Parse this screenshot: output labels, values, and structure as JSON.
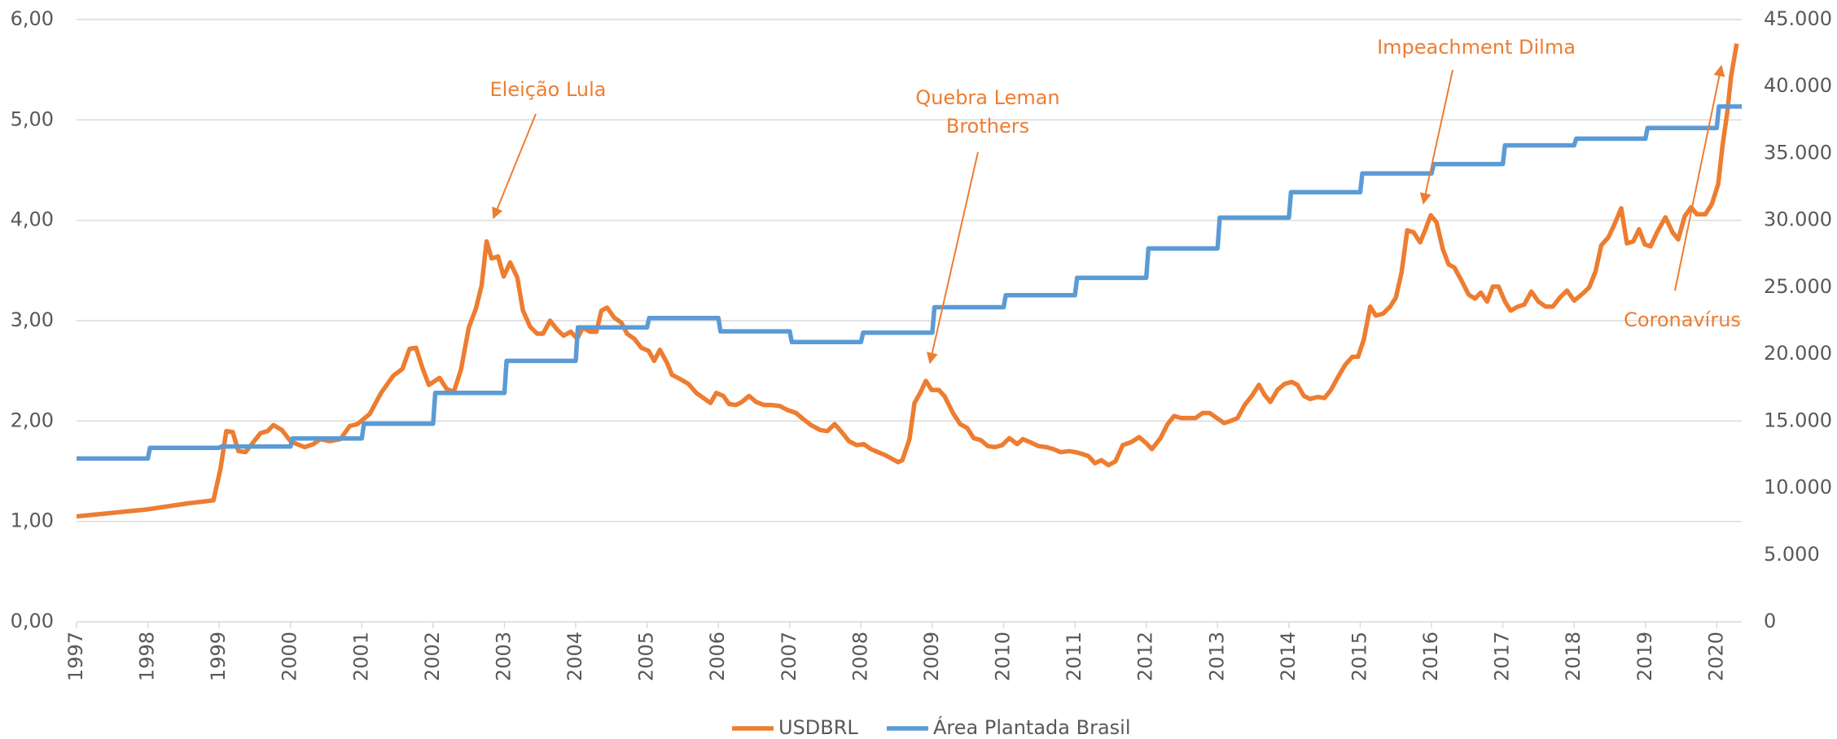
{
  "chart_data": {
    "type": "line",
    "series": [
      {
        "name": "USDBRL",
        "color": "#ED7D31",
        "axis": "y",
        "x": [
          1997.0,
          1997.99,
          1998.56,
          1998.92,
          1999.02,
          1999.1,
          1999.19,
          1999.27,
          1999.37,
          1999.48,
          1999.58,
          1999.68,
          1999.76,
          1999.88,
          2000.0,
          2000.09,
          2000.2,
          2000.32,
          2000.42,
          2000.55,
          2000.7,
          2000.83,
          2000.94,
          2001.11,
          2001.27,
          2001.44,
          2001.57,
          2001.67,
          2001.76,
          2001.85,
          2001.94,
          2002.09,
          2002.19,
          2002.29,
          2002.39,
          2002.5,
          2002.6,
          2002.68,
          2002.75,
          2002.82,
          2002.91,
          2002.99,
          2003.08,
          2003.18,
          2003.26,
          2003.36,
          2003.46,
          2003.54,
          2003.64,
          2003.74,
          2003.83,
          2003.93,
          2004.02,
          2004.1,
          2004.2,
          2004.29,
          2004.36,
          2004.44,
          2004.54,
          2004.64,
          2004.72,
          2004.82,
          2004.92,
          2005.02,
          2005.1,
          2005.18,
          2005.28,
          2005.35,
          2005.46,
          2005.58,
          2005.69,
          2005.79,
          2005.89,
          2005.97,
          2006.07,
          2006.15,
          2006.25,
          2006.33,
          2006.43,
          2006.53,
          2006.64,
          2006.74,
          2006.86,
          2006.97,
          2007.09,
          2007.19,
          2007.3,
          2007.43,
          2007.53,
          2007.63,
          2007.73,
          2007.83,
          2007.94,
          2008.04,
          2008.14,
          2008.24,
          2008.34,
          2008.42,
          2008.52,
          2008.58,
          2008.68,
          2008.75,
          2008.83,
          2008.91,
          2008.99,
          2009.09,
          2009.17,
          2009.29,
          2009.39,
          2009.49,
          2009.58,
          2009.68,
          2009.78,
          2009.88,
          2009.98,
          2010.08,
          2010.19,
          2010.27,
          2010.37,
          2010.49,
          2010.6,
          2010.7,
          2010.8,
          2010.92,
          2011.01,
          2011.11,
          2011.19,
          2011.28,
          2011.37,
          2011.47,
          2011.57,
          2011.67,
          2011.79,
          2011.9,
          2012.0,
          2012.08,
          2012.2,
          2012.3,
          2012.39,
          2012.49,
          2012.59,
          2012.69,
          2012.79,
          2012.89,
          2012.99,
          2013.09,
          2013.18,
          2013.28,
          2013.38,
          2013.48,
          2013.58,
          2013.66,
          2013.74,
          2013.84,
          2013.94,
          2014.04,
          2014.12,
          2014.21,
          2014.3,
          2014.4,
          2014.5,
          2014.59,
          2014.69,
          2014.79,
          2014.89,
          2014.97,
          2015.05,
          2015.14,
          2015.22,
          2015.32,
          2015.42,
          2015.5,
          2015.58,
          2015.66,
          2015.75,
          2015.84,
          2015.91,
          2015.99,
          2016.07,
          2016.16,
          2016.24,
          2016.32,
          2016.42,
          2016.52,
          2016.61,
          2016.69,
          2016.78,
          2016.86,
          2016.94,
          2017.03,
          2017.11,
          2017.21,
          2017.3,
          2017.4,
          2017.5,
          2017.6,
          2017.7,
          2017.8,
          2017.9,
          2018.0,
          2018.12,
          2018.21,
          2018.3,
          2018.38,
          2018.48,
          2018.56,
          2018.66,
          2018.74,
          2018.83,
          2018.91,
          2018.99,
          2019.07,
          2019.17,
          2019.28,
          2019.38,
          2019.46,
          2019.55,
          2019.64,
          2019.72,
          2019.84,
          2019.93,
          2020.02,
          2020.08,
          2020.15,
          2020.2,
          2020.28
        ],
        "values": [
          1.05,
          1.12,
          1.18,
          1.21,
          1.53,
          1.9,
          1.89,
          1.7,
          1.69,
          1.79,
          1.88,
          1.9,
          1.96,
          1.91,
          1.8,
          1.77,
          1.74,
          1.77,
          1.82,
          1.8,
          1.82,
          1.95,
          1.97,
          2.07,
          2.28,
          2.45,
          2.52,
          2.72,
          2.73,
          2.53,
          2.36,
          2.43,
          2.32,
          2.29,
          2.51,
          2.93,
          3.12,
          3.35,
          3.79,
          3.62,
          3.64,
          3.44,
          3.58,
          3.43,
          3.1,
          2.94,
          2.87,
          2.87,
          3.0,
          2.91,
          2.85,
          2.89,
          2.82,
          2.93,
          2.89,
          2.89,
          3.1,
          3.13,
          3.03,
          2.98,
          2.87,
          2.82,
          2.73,
          2.7,
          2.6,
          2.71,
          2.58,
          2.46,
          2.42,
          2.37,
          2.28,
          2.23,
          2.18,
          2.28,
          2.25,
          2.17,
          2.16,
          2.19,
          2.25,
          2.19,
          2.16,
          2.16,
          2.15,
          2.11,
          2.08,
          2.02,
          1.96,
          1.91,
          1.9,
          1.97,
          1.89,
          1.8,
          1.76,
          1.77,
          1.72,
          1.69,
          1.66,
          1.63,
          1.59,
          1.61,
          1.82,
          2.18,
          2.28,
          2.4,
          2.31,
          2.31,
          2.25,
          2.08,
          1.97,
          1.93,
          1.83,
          1.81,
          1.75,
          1.74,
          1.76,
          1.83,
          1.77,
          1.82,
          1.79,
          1.75,
          1.74,
          1.72,
          1.69,
          1.7,
          1.69,
          1.67,
          1.65,
          1.58,
          1.61,
          1.56,
          1.6,
          1.76,
          1.79,
          1.84,
          1.78,
          1.72,
          1.83,
          1.97,
          2.05,
          2.03,
          2.03,
          2.03,
          2.08,
          2.08,
          2.03,
          1.98,
          2.0,
          2.03,
          2.16,
          2.25,
          2.36,
          2.26,
          2.19,
          2.31,
          2.37,
          2.39,
          2.36,
          2.25,
          2.22,
          2.24,
          2.23,
          2.31,
          2.44,
          2.56,
          2.64,
          2.64,
          2.81,
          3.14,
          3.05,
          3.07,
          3.14,
          3.23,
          3.48,
          3.9,
          3.88,
          3.78,
          3.9,
          4.05,
          3.98,
          3.71,
          3.56,
          3.53,
          3.4,
          3.26,
          3.22,
          3.28,
          3.19,
          3.34,
          3.34,
          3.19,
          3.1,
          3.14,
          3.16,
          3.29,
          3.19,
          3.14,
          3.14,
          3.23,
          3.3,
          3.2,
          3.27,
          3.33,
          3.49,
          3.75,
          3.83,
          3.95,
          4.12,
          3.77,
          3.79,
          3.91,
          3.76,
          3.74,
          3.89,
          4.03,
          3.88,
          3.81,
          4.04,
          4.13,
          4.06,
          4.06,
          4.16,
          4.36,
          4.74,
          5.09,
          5.43,
          5.76
        ]
      },
      {
        "name": "Área Plantada Brasil",
        "color": "#5B9BD5",
        "axis": "y2",
        "x": [
          1997,
          1998,
          1998.03,
          1999,
          1999.03,
          2000,
          2000.03,
          2001,
          2001.03,
          2002,
          2002.03,
          2003,
          2003.03,
          2004,
          2004.03,
          2005,
          2005.03,
          2006,
          2006.03,
          2007,
          2007.03,
          2008,
          2008.03,
          2009,
          2009.03,
          2010,
          2010.03,
          2011,
          2011.03,
          2012,
          2012.03,
          2013,
          2013.03,
          2014,
          2014.03,
          2015,
          2015.03,
          2016,
          2016.03,
          2017,
          2017.03,
          2018,
          2018.03,
          2019,
          2019.03,
          2020,
          2020.03,
          2020.35
        ],
        "values": [
          12200,
          12200,
          13000,
          13000,
          13100,
          13100,
          13700,
          13700,
          14800,
          14800,
          17100,
          17100,
          19500,
          19500,
          22000,
          22000,
          22700,
          22700,
          21700,
          21700,
          20900,
          20900,
          21600,
          21600,
          23500,
          23500,
          24400,
          24400,
          25700,
          25700,
          27900,
          27900,
          30200,
          30200,
          32100,
          32100,
          33500,
          33500,
          34200,
          34200,
          35600,
          35600,
          36100,
          36100,
          36900,
          36900,
          38500,
          38500
        ]
      }
    ],
    "xlim": [
      1997,
      2020.35
    ],
    "xticks": [
      1997,
      1998,
      1999,
      2000,
      2001,
      2002,
      2003,
      2004,
      2005,
      2006,
      2007,
      2008,
      2009,
      2010,
      2011,
      2012,
      2013,
      2014,
      2015,
      2016,
      2017,
      2018,
      2019,
      2020
    ],
    "ylim": [
      0,
      6
    ],
    "yticks": [
      {
        "value": 0,
        "label": "0,00"
      },
      {
        "value": 1,
        "label": "1,00"
      },
      {
        "value": 2,
        "label": "2,00"
      },
      {
        "value": 3,
        "label": "3,00"
      },
      {
        "value": 4,
        "label": "4,00"
      },
      {
        "value": 5,
        "label": "5,00"
      },
      {
        "value": 6,
        "label": "6,00"
      }
    ],
    "y2lim": [
      0,
      45000
    ],
    "y2ticks": [
      0,
      {
        "value": 5000,
        "label": "5.000"
      },
      {
        "value": 10000,
        "label": "10.000"
      },
      {
        "value": 15000,
        "label": "15.000"
      },
      {
        "value": 20000,
        "label": "20.000"
      },
      {
        "value": 25000,
        "label": "25.000"
      },
      {
        "value": 30000,
        "label": "30.000"
      },
      {
        "value": 35000,
        "label": "35.000"
      },
      {
        "value": 40000,
        "label": "40.000"
      },
      {
        "value": 45000,
        "label": "45.000"
      }
    ],
    "grid": true,
    "legend": "bottom",
    "annotations": [
      [
        "Eleição Lula"
      ],
      [
        "Quebra Leman",
        "Brothers"
      ],
      [
        "Impeachment Dilma"
      ],
      [
        "Coronavírus"
      ]
    ]
  }
}
